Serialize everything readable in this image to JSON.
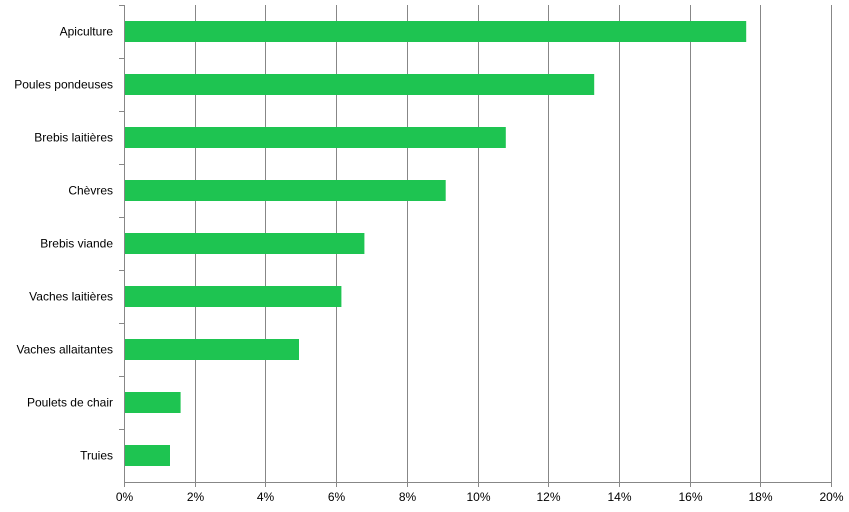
{
  "chart_data": {
    "type": "bar",
    "orientation": "horizontal",
    "categories": [
      "Apiculture",
      "Poules pondeuses",
      "Brebis laitières",
      "Chèvres",
      "Brebis viande",
      "Vaches laitières",
      "Vaches allaitantes",
      "Poulets de chair",
      "Truies"
    ],
    "values": [
      17.6,
      13.3,
      10.8,
      9.1,
      6.8,
      6.15,
      4.95,
      1.6,
      1.3
    ],
    "x_ticks": [
      "0%",
      "2%",
      "4%",
      "6%",
      "8%",
      "10%",
      "12%",
      "14%",
      "16%",
      "18%",
      "20%"
    ],
    "xlim": [
      0,
      20
    ],
    "unit": "%",
    "grid": "vertical",
    "bar_color": "#1ec451",
    "title": "",
    "xlabel": "",
    "ylabel": ""
  }
}
